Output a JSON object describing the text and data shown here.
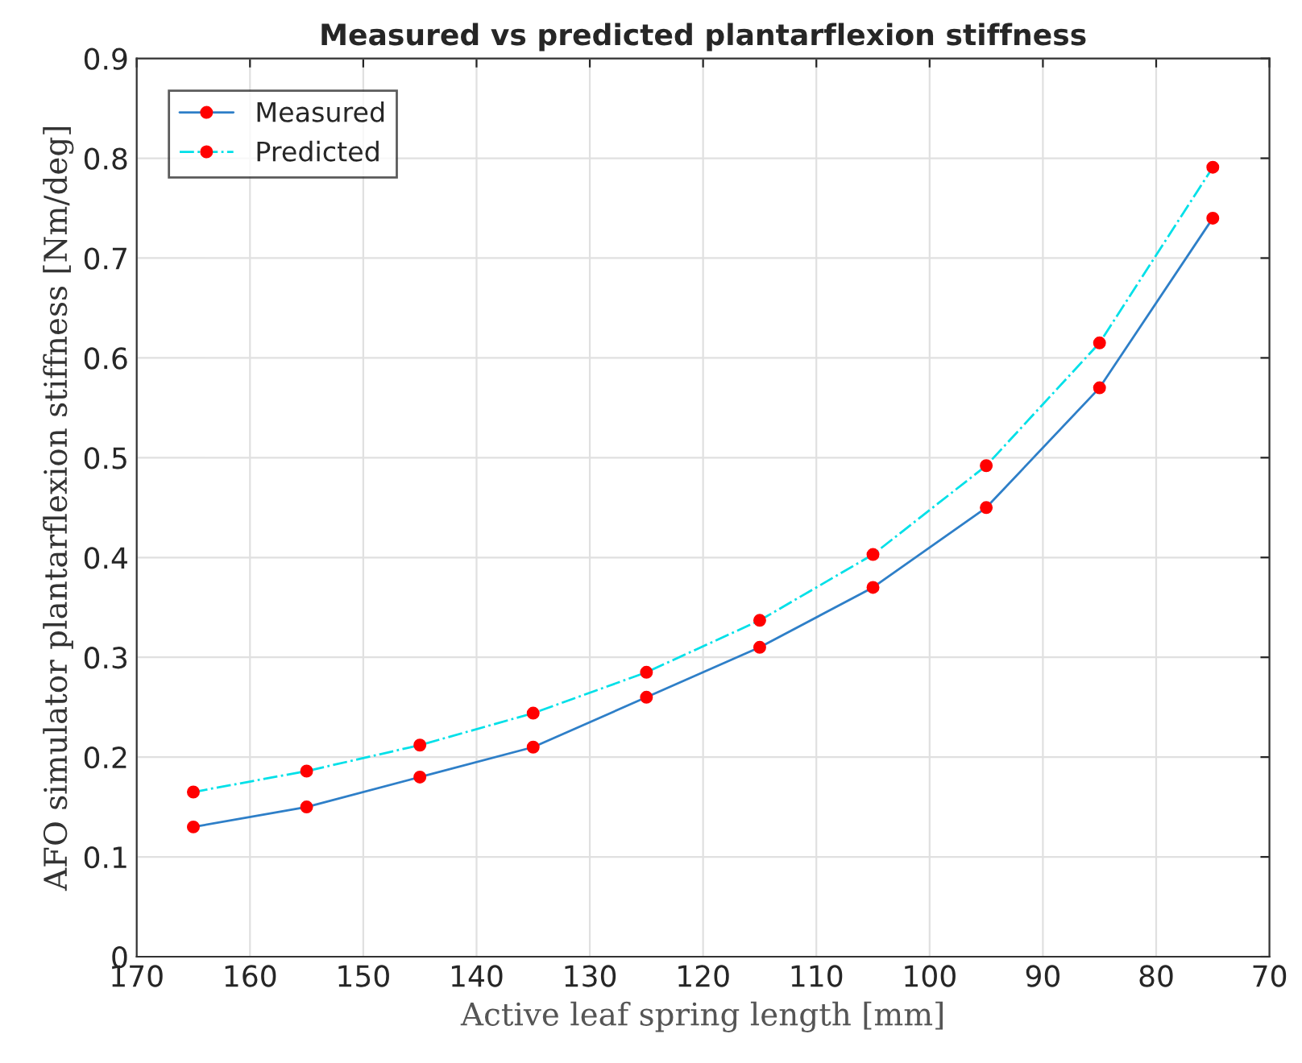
{
  "chart_data": {
    "type": "line",
    "title": "Measured vs predicted plantarflexion stiffness",
    "xlabel": "Active leaf spring length [mm]",
    "ylabel": "AFO simulator plantarflexion stiffness [Nm/deg]",
    "x": [
      165,
      155,
      145,
      135,
      125,
      115,
      105,
      95,
      85,
      75
    ],
    "series": [
      {
        "name": "Measured",
        "color": "#2e7fc8",
        "line_style": "solid",
        "values": [
          0.13,
          0.15,
          0.18,
          0.21,
          0.26,
          0.31,
          0.37,
          0.45,
          0.57,
          0.74
        ]
      },
      {
        "name": "Predicted",
        "color": "#00e0e8",
        "line_style": "dashdot",
        "values": [
          0.165,
          0.186,
          0.212,
          0.244,
          0.285,
          0.337,
          0.403,
          0.492,
          0.615,
          0.791
        ]
      }
    ],
    "xlim": [
      170,
      70
    ],
    "xticks": [
      170,
      160,
      150,
      140,
      130,
      120,
      110,
      100,
      90,
      80,
      70
    ],
    "ylim": [
      0,
      0.9
    ],
    "yticks": [
      0,
      0.1,
      0.2,
      0.3,
      0.4,
      0.5,
      0.6,
      0.7,
      0.8,
      0.9
    ],
    "grid": true,
    "legend": "top left",
    "marker": "circle"
  }
}
